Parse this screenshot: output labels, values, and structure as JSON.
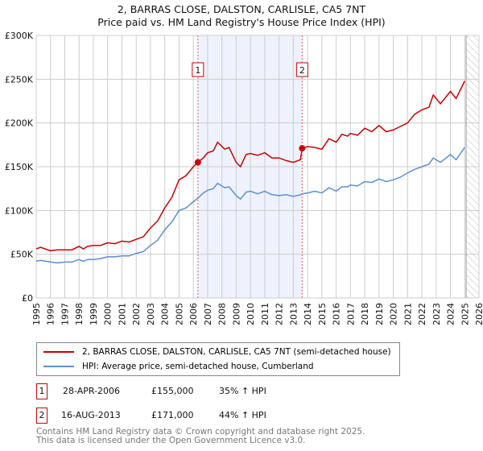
{
  "title_line1": "2, BARRAS CLOSE, DALSTON, CARLISLE, CA5 7NT",
  "title_line2": "Price paid vs. HM Land Registry's House Price Index (HPI)",
  "chart_data": {
    "type": "line",
    "title": "2, BARRAS CLOSE, DALSTON, CARLISLE, CA5 7NT - Price paid vs. HM Land Registry's House Price Index (HPI)",
    "xlim": [
      1995,
      2026
    ],
    "ylim": [
      0,
      300000
    ],
    "x_ticks": [
      1995,
      1996,
      1997,
      1998,
      1999,
      2000,
      2001,
      2002,
      2003,
      2004,
      2005,
      2006,
      2007,
      2008,
      2009,
      2010,
      2011,
      2012,
      2013,
      2014,
      2015,
      2016,
      2017,
      2018,
      2019,
      2020,
      2021,
      2022,
      2023,
      2024,
      2025,
      2026
    ],
    "y_ticks": [
      0,
      50000,
      100000,
      150000,
      200000,
      250000,
      300000
    ],
    "y_tick_labels": [
      "£0",
      "£50K",
      "£100K",
      "£150K",
      "£200K",
      "£250K",
      "£300K"
    ],
    "grid": true,
    "shaded_range": [
      2006.32,
      2013.62
    ],
    "hatched_from": 2025.1,
    "colors": {
      "property": "#cc0000",
      "hpi": "#5b8fd4",
      "shade": "#eef2fc"
    },
    "series": [
      {
        "name": "2, BARRAS CLOSE, DALSTON, CARLISLE, CA5 7NT (semi-detached house)",
        "x": [
          1995,
          1995.3,
          1996,
          1996.5,
          1997,
          1997.5,
          1998,
          1998.3,
          1998.6,
          1999,
          1999.5,
          2000,
          2000.5,
          2001,
          2001.5,
          2002,
          2002.5,
          2003,
          2003.5,
          2004,
          2004.5,
          2005,
          2005.5,
          2006,
          2006.32,
          2006.7,
          2007,
          2007.4,
          2007.7,
          2008.2,
          2008.5,
          2009,
          2009.3,
          2009.7,
          2010,
          2010.5,
          2011,
          2011.5,
          2012,
          2012.5,
          2013,
          2013.5,
          2013.62,
          2014,
          2014.5,
          2015,
          2015.5,
          2016,
          2016.4,
          2016.8,
          2017,
          2017.5,
          2018,
          2018.5,
          2019,
          2019.5,
          2020,
          2020.5,
          2021,
          2021.5,
          2022,
          2022.5,
          2022.8,
          2023.3,
          2023.7,
          2024,
          2024.4,
          2025
        ],
        "y": [
          56000,
          58000,
          54000,
          55000,
          55000,
          55000,
          59000,
          56000,
          59000,
          60000,
          60000,
          63000,
          62000,
          65000,
          64000,
          67000,
          70000,
          80000,
          88000,
          103000,
          115000,
          135000,
          140000,
          150000,
          155000,
          160000,
          166000,
          168000,
          178000,
          170000,
          172000,
          155000,
          150000,
          164000,
          165000,
          163000,
          166000,
          160000,
          160000,
          157000,
          155000,
          158000,
          171000,
          173000,
          172000,
          170000,
          182000,
          178000,
          187000,
          185000,
          188000,
          186000,
          194000,
          190000,
          197000,
          190000,
          192000,
          196000,
          200000,
          210000,
          215000,
          218000,
          232000,
          222000,
          230000,
          236000,
          228000,
          248000
        ]
      },
      {
        "name": "HPI: Average price, semi-detached house, Cumberland",
        "x": [
          1995,
          1995.3,
          1996,
          1996.5,
          1997,
          1997.5,
          1998,
          1998.3,
          1998.6,
          1999,
          1999.5,
          2000,
          2000.5,
          2001,
          2001.5,
          2002,
          2002.5,
          2003,
          2003.5,
          2004,
          2004.5,
          2005,
          2005.5,
          2006,
          2006.32,
          2006.7,
          2007,
          2007.4,
          2007.7,
          2008.2,
          2008.5,
          2009,
          2009.3,
          2009.7,
          2010,
          2010.5,
          2011,
          2011.5,
          2012,
          2012.5,
          2013,
          2013.5,
          2013.62,
          2014,
          2014.5,
          2015,
          2015.5,
          2016,
          2016.4,
          2016.8,
          2017,
          2017.5,
          2018,
          2018.5,
          2019,
          2019.5,
          2020,
          2020.5,
          2021,
          2021.5,
          2022,
          2022.5,
          2022.8,
          2023.3,
          2023.7,
          2024,
          2024.4,
          2025
        ],
        "y": [
          42000,
          43000,
          41000,
          40000,
          41000,
          41000,
          44000,
          42000,
          44000,
          44000,
          45000,
          47000,
          47000,
          48000,
          48000,
          51000,
          53000,
          60000,
          66000,
          78000,
          87000,
          100000,
          103000,
          110000,
          114000,
          120000,
          123000,
          125000,
          131000,
          126000,
          127000,
          117000,
          113000,
          121000,
          122000,
          119000,
          122000,
          118000,
          117000,
          118000,
          116000,
          118000,
          119000,
          120000,
          122000,
          120000,
          126000,
          122000,
          127000,
          127000,
          129000,
          128000,
          133000,
          132000,
          136000,
          133000,
          135000,
          138000,
          143000,
          147000,
          150000,
          153000,
          160000,
          155000,
          160000,
          164000,
          158000,
          172000
        ]
      }
    ],
    "sales": [
      {
        "label": "1",
        "x": 2006.32,
        "y": 155000
      },
      {
        "label": "2",
        "x": 2013.62,
        "y": 171000
      }
    ]
  },
  "legend": {
    "property": "2, BARRAS CLOSE, DALSTON, CARLISLE, CA5 7NT (semi-detached house)",
    "hpi": "HPI: Average price, semi-detached house, Cumberland"
  },
  "transactions": [
    {
      "id": "1",
      "date": "28-APR-2006",
      "price": "£155,000",
      "hpi": "35% ↑ HPI"
    },
    {
      "id": "2",
      "date": "16-AUG-2013",
      "price": "£171,000",
      "hpi": "44% ↑ HPI"
    }
  ],
  "footer": {
    "line1": "Contains HM Land Registry data © Crown copyright and database right 2025.",
    "line2": "This data is licensed under the Open Government Licence v3.0."
  }
}
